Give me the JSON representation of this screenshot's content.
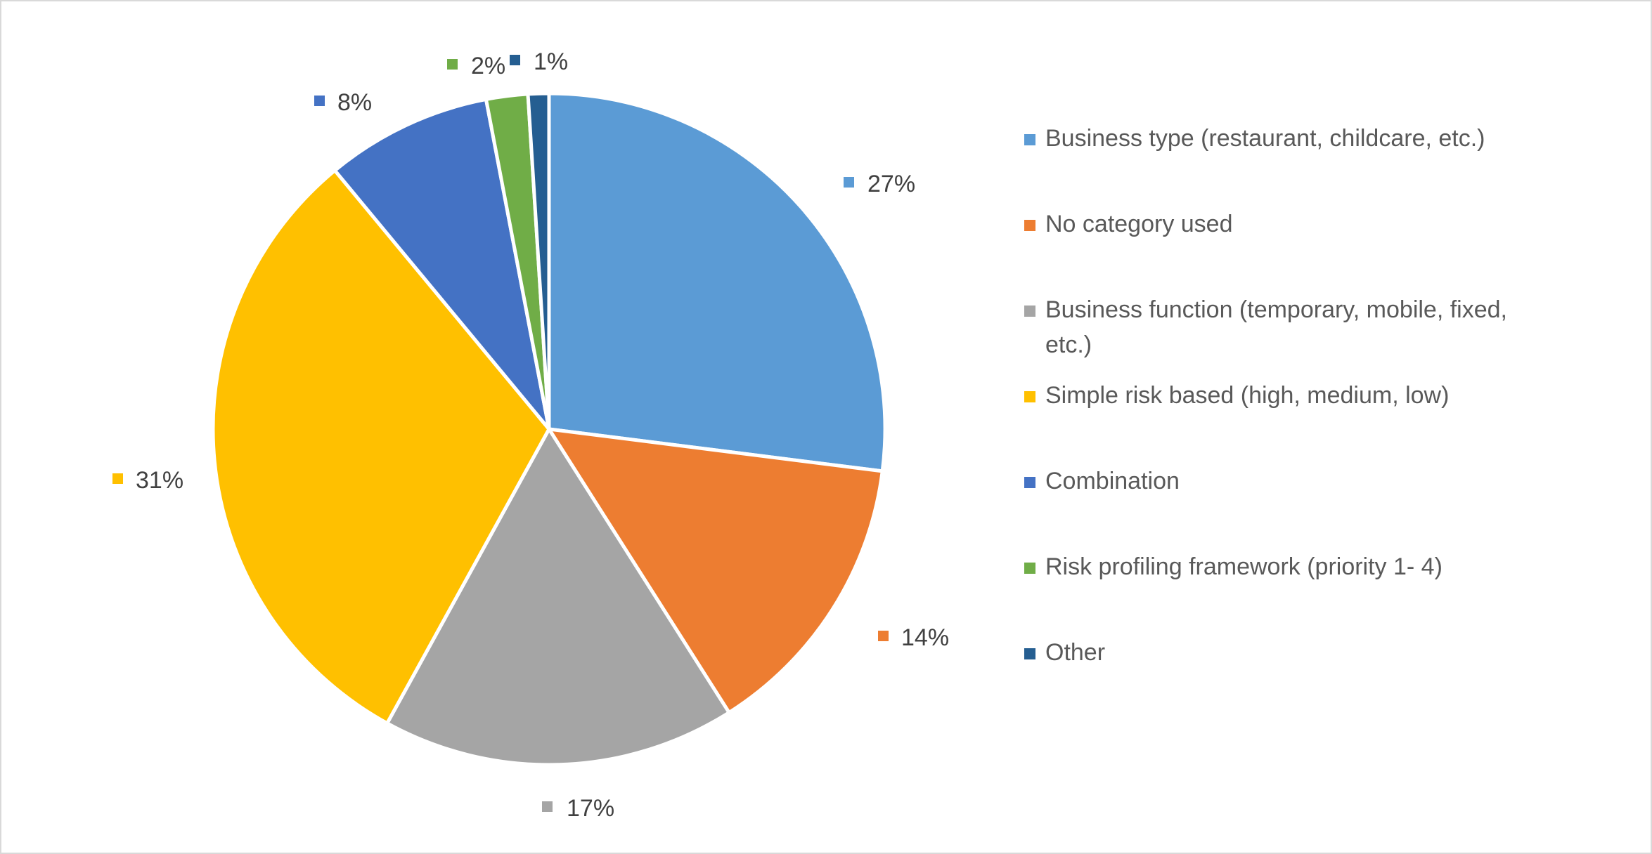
{
  "chart_data": {
    "type": "pie",
    "title": "",
    "categories": [
      "Business type (restaurant, childcare, etc.)",
      "No category used",
      "Business function (temporary, mobile, fixed, etc.)",
      "Simple risk based (high, medium, low)",
      "Combination",
      "Risk profiling framework (priority 1- 4)",
      "Other"
    ],
    "values": [
      27,
      14,
      17,
      31,
      8,
      2,
      1
    ],
    "value_labels": [
      "27%",
      "14%",
      "17%",
      "31%",
      "8%",
      "2%",
      "1%"
    ],
    "colors": [
      "#5b9bd5",
      "#ed7d31",
      "#a5a5a5",
      "#ffc000",
      "#4472c4",
      "#70ad47",
      "#255e91"
    ],
    "start_angle": "12 o'clock",
    "direction": "clockwise",
    "legend_position": "right",
    "data_label_style": "outside with color marker"
  }
}
